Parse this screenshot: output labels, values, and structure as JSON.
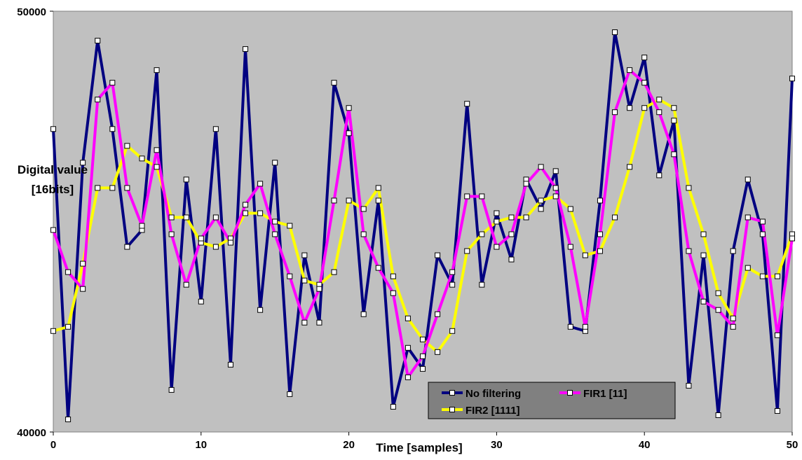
{
  "chart_data": {
    "type": "line",
    "title": "",
    "xlabel": "Time [samples]",
    "ylabel_lines": [
      "Digital value",
      "[16bits]"
    ],
    "xlim": [
      0,
      50
    ],
    "ylim": [
      40000,
      50000
    ],
    "x_ticks": [
      "0",
      "10",
      "20",
      "30",
      "40",
      "50"
    ],
    "y_ticks": [
      "40000",
      "50000"
    ],
    "grid": false,
    "plot_background": "#c0c0c0",
    "legend_position": "bottom-right",
    "x": [
      0,
      1,
      2,
      3,
      4,
      5,
      6,
      7,
      8,
      9,
      10,
      11,
      12,
      13,
      14,
      15,
      16,
      17,
      18,
      19,
      20,
      21,
      22,
      23,
      24,
      25,
      26,
      27,
      28,
      29,
      30,
      31,
      32,
      33,
      34,
      35,
      36,
      37,
      38,
      39,
      40,
      41,
      42,
      43,
      44,
      45,
      46,
      47,
      48,
      49,
      50
    ],
    "series": [
      {
        "name": "No filtering",
        "color": "#000080",
        "values": [
          47200,
          40300,
          46400,
          49300,
          47200,
          44400,
          44800,
          48600,
          41000,
          46000,
          43100,
          47200,
          41600,
          49100,
          42900,
          46400,
          40900,
          44200,
          42600,
          48300,
          47100,
          42800,
          45500,
          40600,
          42000,
          41500,
          44200,
          43500,
          47800,
          43500,
          45200,
          44100,
          46000,
          45300,
          46200,
          42500,
          42400,
          45500,
          49500,
          47700,
          48900,
          46100,
          47400,
          41100,
          44200,
          40400,
          44300,
          46000,
          44700,
          40500,
          48400
        ]
      },
      {
        "name": "FIR1 [11]",
        "color": "#ff00ff",
        "values": [
          44800,
          43800,
          43400,
          47900,
          48300,
          45800,
          44900,
          46700,
          44700,
          43500,
          44600,
          45100,
          44500,
          45400,
          45900,
          44700,
          43700,
          42600,
          43400,
          45500,
          47700,
          44700,
          43900,
          43300,
          41300,
          41800,
          42800,
          43800,
          45600,
          45600,
          44400,
          44700,
          45900,
          46300,
          45800,
          44400,
          42500,
          44700,
          47600,
          48600,
          48300,
          47600,
          46600,
          44300,
          43100,
          42900,
          42500,
          45100,
          45000,
          42300,
          44600
        ]
      },
      {
        "name": "FIR2 [1111]",
        "color": "#ffff00",
        "values": [
          42400,
          42500,
          44000,
          45800,
          45800,
          46800,
          46500,
          46300,
          45100,
          45100,
          44500,
          44400,
          44600,
          45200,
          45200,
          45000,
          44900,
          43600,
          43500,
          43800,
          45500,
          45300,
          45800,
          43700,
          42700,
          42200,
          41900,
          42400,
          44300,
          44700,
          45000,
          45100,
          45100,
          45500,
          45600,
          45300,
          44200,
          44300,
          45100,
          46300,
          47700,
          47900,
          47700,
          45800,
          44700,
          43300,
          42700,
          43900,
          43700,
          43700,
          44700
        ]
      }
    ],
    "markers": {
      "No filtering": [
        47200,
        40300,
        46400,
        49300,
        47200,
        44400,
        44800,
        48600,
        41000,
        46000,
        43100,
        47200,
        41600,
        49100,
        42900,
        46400,
        40900,
        44200,
        42600,
        48300,
        47100,
        42800,
        45500,
        40600,
        42000,
        41500,
        44200,
        43500,
        47800,
        43500,
        45200,
        44100,
        46000,
        45300,
        46200,
        42500,
        42400,
        45500,
        49500,
        47700,
        48900,
        46100,
        47400,
        41100,
        44200,
        40400,
        44300,
        46000,
        44700,
        40500,
        48400
      ],
      "FIR1 [11]": [
        44800,
        43800,
        43400,
        47900,
        48300,
        45800,
        44900,
        46700,
        44700,
        43500,
        44600,
        45100,
        44500,
        45400,
        45900,
        44700,
        43700,
        42600,
        43400,
        45500,
        47700,
        44700,
        43900,
        43300,
        41300,
        41800,
        42800,
        43800,
        45600,
        45600,
        44400,
        44700,
        45900,
        46300,
        45800,
        44400,
        42500,
        44700,
        47600,
        48600,
        48300,
        47600,
        46600,
        44300,
        43100,
        42900,
        42500,
        45100,
        45000,
        42300,
        44600
      ],
      "FIR2 [1111]": [
        42400,
        42500,
        44000,
        45800,
        45800,
        46800,
        46500,
        46300,
        45100,
        45100,
        44500,
        44400,
        44600,
        45200,
        45200,
        45000,
        44900,
        43600,
        43500,
        43800,
        45500,
        45300,
        45800,
        43700,
        42700,
        42200,
        41900,
        42400,
        44300,
        44700,
        45000,
        45100,
        45100,
        45500,
        45600,
        45300,
        44200,
        44300,
        45100,
        46300,
        47700,
        47900,
        47700,
        45800,
        44700,
        43300,
        42700,
        43900,
        43700,
        43700,
        44700
      ]
    },
    "legend": [
      {
        "name": "No filtering",
        "color": "#000080"
      },
      {
        "name": "FIR1 [11]",
        "color": "#ff00ff"
      },
      {
        "name": "FIR2 [1111]",
        "color": "#ffff00"
      }
    ]
  }
}
